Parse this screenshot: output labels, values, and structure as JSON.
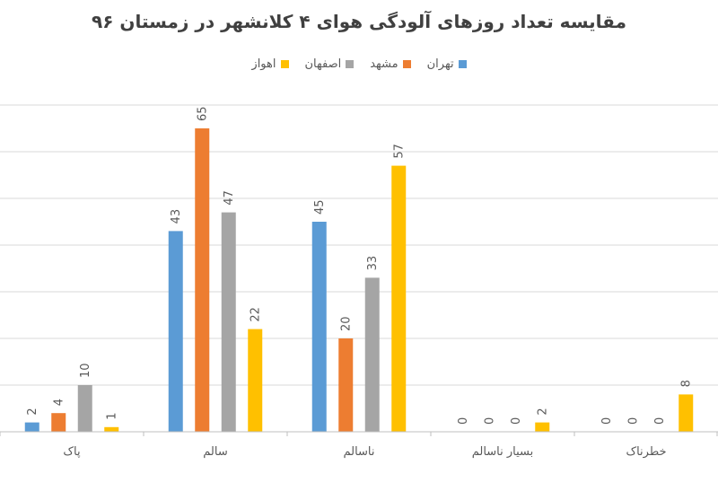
{
  "chart_data": {
    "type": "bar",
    "title": "مقایسه تعداد روزهای آلودگی هوای ۴ کلانشهر در زمستان ۹۶",
    "categories": [
      "پاک",
      "سالم",
      "ناسالم",
      "بسیار ناسالم",
      "خطرناک"
    ],
    "series": [
      {
        "name": "تهران",
        "color": "#5B9BD5",
        "values": [
          2,
          43,
          45,
          0,
          0
        ]
      },
      {
        "name": "مشهد",
        "color": "#ED7D31",
        "values": [
          4,
          65,
          20,
          0,
          0
        ]
      },
      {
        "name": "اصفهان",
        "color": "#A5A5A5",
        "values": [
          10,
          47,
          33,
          0,
          0
        ]
      },
      {
        "name": "اهواز",
        "color": "#FFC000",
        "values": [
          1,
          22,
          57,
          2,
          8
        ]
      }
    ],
    "ylim": [
      0,
      70
    ],
    "grid": true,
    "legend_position": "top"
  }
}
